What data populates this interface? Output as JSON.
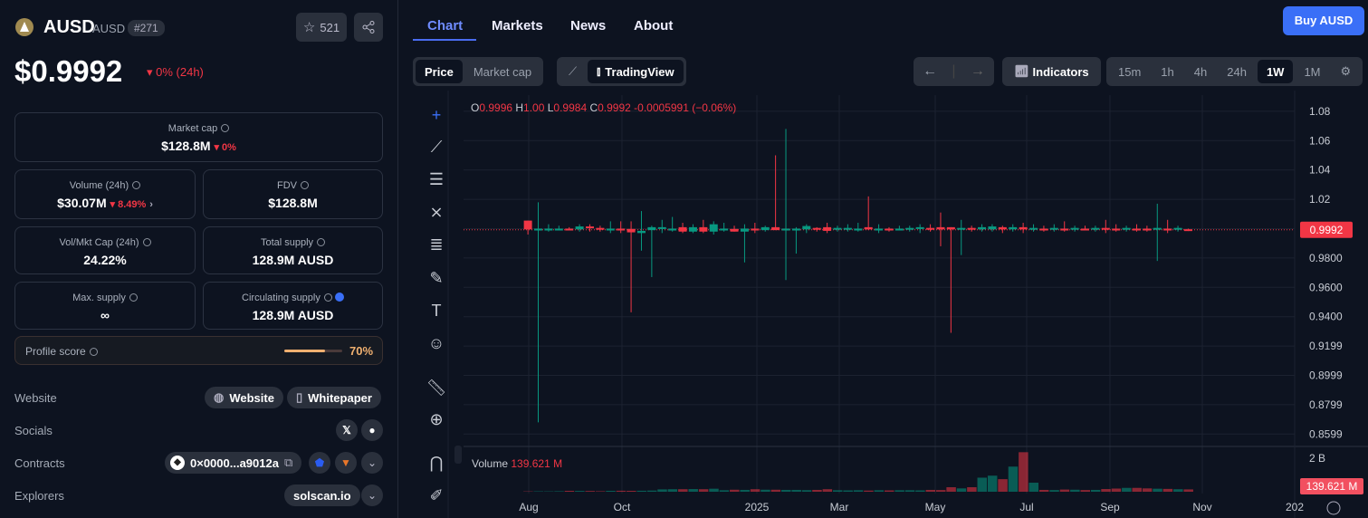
{
  "coin": {
    "name": "AUSD",
    "symbol": "AUSD",
    "rank": "#271",
    "watchlist_count": "521",
    "price": "$0.9992",
    "change_24h": "0% (24h)"
  },
  "stats": {
    "market_cap": {
      "label": "Market cap",
      "value": "$128.8M",
      "change": "0%"
    },
    "volume": {
      "label": "Volume (24h)",
      "value": "$30.07M",
      "change": "8.49%"
    },
    "fdv": {
      "label": "FDV",
      "value": "$128.8M"
    },
    "vol_mkt": {
      "label": "Vol/Mkt Cap (24h)",
      "value": "24.22%"
    },
    "total_supply": {
      "label": "Total supply",
      "value": "128.9M AUSD"
    },
    "max_supply": {
      "label": "Max. supply",
      "value": "∞"
    },
    "circ_supply": {
      "label": "Circulating supply",
      "value": "128.9M AUSD"
    }
  },
  "profile": {
    "label": "Profile score",
    "value": "70%",
    "fraction": 0.7
  },
  "links": {
    "website_label": "Website",
    "website_btn": "Website",
    "whitepaper_btn": "Whitepaper",
    "socials_label": "Socials",
    "contracts_label": "Contracts",
    "contract": "0×0000...a9012a",
    "explorers_label": "Explorers",
    "explorer": "solscan.io"
  },
  "nav": {
    "tabs": [
      "Chart",
      "Markets",
      "News",
      "About"
    ],
    "active": "Chart",
    "buy": "Buy AUSD"
  },
  "toolbar": {
    "price": "Price",
    "market_cap": "Market cap",
    "tradingview": "TradingView",
    "indicators": "Indicators",
    "intervals": [
      "15m",
      "1h",
      "4h",
      "24h",
      "1W",
      "1M"
    ],
    "active_interval": "1W"
  },
  "colors": {
    "up": "#089981",
    "down": "#f23645",
    "accent": "#3a6ff7"
  },
  "chart_data": {
    "type": "candlestick",
    "ohlc_legend": {
      "o": "0.9996",
      "h": "1.00",
      "l": "0.9984",
      "c": "0.9992",
      "change": "-0.0005991 (−0.06%)"
    },
    "last_price_label": "0.9992",
    "y_ticks": [
      "1.08",
      "1.06",
      "1.04",
      "1.02",
      "0.9800",
      "0.9600",
      "0.9400",
      "0.9199",
      "0.8999",
      "0.8799",
      "0.8599"
    ],
    "x_ticks": [
      "Aug",
      "Oct",
      "2025",
      "Mar",
      "May",
      "Jul",
      "Sep",
      "Nov",
      "202"
    ],
    "volume": {
      "label": "Volume",
      "value": "139.621 M",
      "tick": "2 B",
      "last_label": "139.621 M"
    },
    "ylim": [
      0.855,
      1.085
    ],
    "columns": [
      "date",
      "open",
      "high",
      "low",
      "close",
      "volume_millions"
    ],
    "candles": [
      [
        "2024-07-29",
        1.0055,
        1.0055,
        0.996,
        0.9995,
        20
      ],
      [
        "2024-08-05",
        0.9995,
        1.018,
        0.868,
        1.0,
        25
      ],
      [
        "2024-08-12",
        0.9998,
        1.003,
        0.998,
        1.0,
        22
      ],
      [
        "2024-08-19",
        0.9999,
        1.002,
        0.999,
        1.0,
        30
      ],
      [
        "2024-08-26",
        1.0,
        1.001,
        0.999,
        0.9998,
        55
      ],
      [
        "2024-09-02",
        0.9995,
        1.003,
        0.998,
        1.0015,
        50
      ],
      [
        "2024-09-09",
        1.0015,
        1.003,
        0.998,
        1.0003,
        45
      ],
      [
        "2024-09-16",
        1.0005,
        1.002,
        0.998,
        0.9995,
        30
      ],
      [
        "2024-09-23",
        0.9998,
        1.005,
        0.997,
        1.0,
        55
      ],
      [
        "2024-09-30",
        1.0,
        1.005,
        0.997,
        0.9998,
        60
      ],
      [
        "2024-10-07",
        0.9998,
        1.005,
        0.943,
        0.9975,
        55
      ],
      [
        "2024-10-14",
        0.997,
        1.012,
        0.985,
        0.9985,
        60
      ],
      [
        "2024-10-21",
        0.999,
        1.002,
        0.967,
        1.001,
        70
      ],
      [
        "2024-10-28",
        1.0,
        1.006,
        0.997,
        1.001,
        140
      ],
      [
        "2024-11-04",
        0.9998,
        1.008,
        0.998,
        1.0,
        150
      ],
      [
        "2024-11-11",
        1.001,
        1.004,
        0.997,
        0.998,
        150
      ],
      [
        "2024-11-18",
        0.998,
        1.003,
        0.997,
        1.001,
        160
      ],
      [
        "2024-11-25",
        1.001,
        1.006,
        0.997,
        0.998,
        150
      ],
      [
        "2024-12-02",
        0.998,
        1.005,
        0.996,
        1.003,
        180
      ],
      [
        "2024-12-09",
        0.9998,
        1.004,
        0.998,
        1.0,
        90
      ],
      [
        "2024-12-16",
        0.9998,
        1.002,
        0.998,
        0.998,
        120
      ],
      [
        "2024-12-23",
        0.998,
        1.003,
        0.977,
        1.0,
        110
      ],
      [
        "2024-12-30",
        1.0,
        1.004,
        0.997,
        0.999,
        150
      ],
      [
        "2025-01-06",
        0.999,
        1.002,
        0.998,
        1.001,
        120
      ],
      [
        "2025-01-13",
        1.001,
        1.05,
        0.999,
        0.999,
        120
      ],
      [
        "2025-01-20",
        0.9998,
        1.068,
        0.965,
        1.0,
        110
      ],
      [
        "2025-01-27",
        0.9998,
        1.001,
        0.983,
        1.0,
        110
      ],
      [
        "2025-02-03",
        0.9995,
        1.003,
        0.997,
        1.0018,
        95
      ],
      [
        "2025-02-10",
        1.0005,
        1.001,
        0.998,
        0.9995,
        110
      ],
      [
        "2025-02-17",
        1.001,
        1.004,
        0.997,
        0.9985,
        150
      ],
      [
        "2025-02-24",
        0.9995,
        1.002,
        0.998,
        1.0005,
        90
      ],
      [
        "2025-03-03",
        1.0,
        1.003,
        0.998,
        1.0005,
        80
      ],
      [
        "2025-03-10",
        1.0,
        1.004,
        0.998,
        1.0,
        90
      ],
      [
        "2025-03-17",
        1.001,
        1.022,
        0.999,
        0.9995,
        70
      ],
      [
        "2025-03-24",
        0.9995,
        1.003,
        0.997,
        1.0,
        90
      ],
      [
        "2025-03-31",
        1.0,
        1.001,
        0.998,
        0.9995,
        80
      ],
      [
        "2025-04-07",
        0.9995,
        1.002,
        0.999,
        1.0,
        90
      ],
      [
        "2025-04-14",
        1.0,
        1.002,
        0.998,
        1.0005,
        90
      ],
      [
        "2025-04-21",
        1.0,
        1.003,
        0.997,
        1.001,
        80
      ],
      [
        "2025-04-28",
        1.0005,
        1.003,
        0.998,
        0.9995,
        110
      ],
      [
        "2025-05-05",
        1.001,
        1.011,
        0.988,
        0.9995,
        100
      ],
      [
        "2025-05-12",
        1.001,
        1.001,
        0.929,
        0.9995,
        270
      ],
      [
        "2025-05-19",
        0.9995,
        1.006,
        0.982,
        1.0005,
        200
      ],
      [
        "2025-05-26",
        1.0005,
        1.002,
        0.998,
        0.9995,
        270
      ],
      [
        "2025-06-02",
        0.9995,
        1.003,
        0.998,
        1.001,
        840
      ],
      [
        "2025-06-09",
        0.9995,
        1.003,
        0.998,
        1.0015,
        960
      ],
      [
        "2025-06-16",
        1.001,
        1.002,
        0.997,
        0.9995,
        750
      ],
      [
        "2025-06-23",
        0.9995,
        1.003,
        0.998,
        1.001,
        1500
      ],
      [
        "2025-06-30",
        1.001,
        1.004,
        0.997,
        0.9995,
        2360
      ],
      [
        "2025-07-07",
        0.9995,
        1.003,
        0.998,
        1.0005,
        540
      ],
      [
        "2025-07-14",
        1.0,
        1.002,
        0.998,
        0.9995,
        110
      ],
      [
        "2025-07-21",
        0.9995,
        1.003,
        0.998,
        1.0005,
        100
      ],
      [
        "2025-07-28",
        1.0,
        1.005,
        0.998,
        0.9995,
        130
      ],
      [
        "2025-08-04",
        0.9995,
        1.002,
        0.998,
        1.0005,
        120
      ],
      [
        "2025-08-11",
        1.0,
        1.002,
        0.999,
        0.9995,
        100
      ],
      [
        "2025-08-18",
        0.9995,
        1.002,
        0.998,
        1.0005,
        110
      ],
      [
        "2025-08-25",
        1.0005,
        1.006,
        0.997,
        0.9995,
        160
      ],
      [
        "2025-09-01",
        1.0,
        1.003,
        0.998,
        0.9995,
        190
      ],
      [
        "2025-09-08",
        0.9995,
        1.002,
        0.998,
        1.0005,
        230
      ],
      [
        "2025-09-15",
        1.0,
        1.003,
        0.998,
        0.9995,
        230
      ],
      [
        "2025-09-22",
        1.0,
        1.002,
        0.998,
        0.9995,
        200
      ],
      [
        "2025-09-29",
        0.9995,
        1.017,
        0.978,
        1.0005,
        180
      ],
      [
        "2025-10-06",
        1.0,
        1.006,
        0.997,
        0.9995,
        170
      ],
      [
        "2025-10-13",
        0.9995,
        1.002,
        0.998,
        1.0005,
        150
      ],
      [
        "2025-10-20",
        0.9996,
        1.0,
        0.9984,
        0.9992,
        139.621
      ]
    ]
  }
}
